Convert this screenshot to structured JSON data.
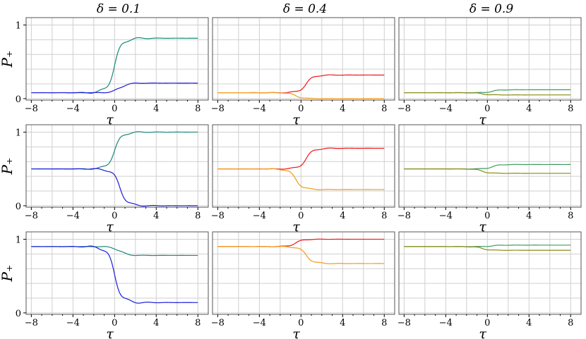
{
  "figure": {
    "titles": [
      "δ = 0.1",
      "δ = 0.4",
      "δ = 0.9"
    ],
    "ylabel": "P₊",
    "xlabel": "τ"
  },
  "colors": {
    "teal": "#19897a",
    "blue": "#1c1cdc",
    "red": "#ee1818",
    "orange": "#f39b16",
    "green": "#3d9a62",
    "olive": "#8a8a12"
  },
  "chart_data": [
    {
      "type": "line",
      "panel": "row1-col1",
      "title": "δ = 0.1",
      "xlabel": "τ",
      "ylabel": "P₊",
      "xlim": [
        -8.5,
        9
      ],
      "ylim": [
        -0.02,
        1.1
      ],
      "xticks": [
        -8,
        -4,
        0,
        4,
        8
      ],
      "yticks": [
        0,
        1
      ],
      "grid": true,
      "series": [
        {
          "color": "teal",
          "start": 0.08,
          "turn": 0.0,
          "end": 0.82
        },
        {
          "color": "blue",
          "start": 0.08,
          "turn": 0.5,
          "end": 0.21
        }
      ]
    },
    {
      "type": "line",
      "panel": "row1-col2",
      "title": "δ = 0.4",
      "xlabel": "τ",
      "xlim": [
        -8.5,
        9
      ],
      "ylim": [
        -0.02,
        1.1
      ],
      "xticks": [
        -8,
        -4,
        0,
        4,
        8
      ],
      "grid": true,
      "series": [
        {
          "color": "red",
          "start": 0.08,
          "turn": 0.5,
          "end": 0.32
        },
        {
          "color": "orange",
          "start": 0.08,
          "turn": -0.5,
          "end": 0.0
        }
      ]
    },
    {
      "type": "line",
      "panel": "row1-col3",
      "title": "δ = 0.9",
      "xlabel": "τ",
      "xlim": [
        -8.5,
        9
      ],
      "ylim": [
        -0.02,
        1.1
      ],
      "xticks": [
        -8,
        -4,
        0,
        4,
        8
      ],
      "grid": true,
      "series": [
        {
          "color": "green",
          "start": 0.08,
          "turn": 0.5,
          "end": 0.12
        },
        {
          "color": "olive",
          "start": 0.08,
          "turn": -0.5,
          "end": 0.05
        }
      ]
    },
    {
      "type": "line",
      "panel": "row2-col1",
      "xlabel": "τ",
      "ylabel": "P₊",
      "xlim": [
        -8.5,
        9
      ],
      "ylim": [
        -0.02,
        1.1
      ],
      "xticks": [
        -8,
        -4,
        0,
        4,
        8
      ],
      "yticks": [
        0,
        1
      ],
      "grid": true,
      "series": [
        {
          "color": "teal",
          "start": 0.5,
          "turn": 0.0,
          "end": 1.0
        },
        {
          "color": "blue",
          "start": 0.5,
          "turn": 0.5,
          "end": 0.0
        }
      ]
    },
    {
      "type": "line",
      "panel": "row2-col2",
      "xlabel": "τ",
      "xlim": [
        -8.5,
        9
      ],
      "ylim": [
        -0.02,
        1.1
      ],
      "xticks": [
        -8,
        -4,
        0,
        4,
        8
      ],
      "grid": true,
      "series": [
        {
          "color": "red",
          "start": 0.5,
          "turn": 0.5,
          "end": 0.78
        },
        {
          "color": "orange",
          "start": 0.5,
          "turn": -0.5,
          "end": 0.22
        }
      ]
    },
    {
      "type": "line",
      "panel": "row2-col3",
      "xlabel": "τ",
      "xlim": [
        -8.5,
        9
      ],
      "ylim": [
        -0.02,
        1.1
      ],
      "xticks": [
        -8,
        -4,
        0,
        4,
        8
      ],
      "grid": true,
      "series": [
        {
          "color": "green",
          "start": 0.5,
          "turn": 0.5,
          "end": 0.56
        },
        {
          "color": "olive",
          "start": 0.5,
          "turn": -0.5,
          "end": 0.44
        }
      ]
    },
    {
      "type": "line",
      "panel": "row3-col1",
      "xlabel": "τ",
      "ylabel": "P₊",
      "xlim": [
        -8.5,
        9
      ],
      "ylim": [
        -0.02,
        1.1
      ],
      "xticks": [
        -8,
        -4,
        0,
        4,
        8
      ],
      "yticks": [
        0,
        1
      ],
      "grid": true,
      "series": [
        {
          "color": "teal",
          "start": 0.9,
          "turn": 0.5,
          "end": 0.78
        },
        {
          "color": "blue",
          "start": 0.9,
          "turn": 0.0,
          "end": 0.14
        }
      ]
    },
    {
      "type": "line",
      "panel": "row3-col2",
      "xlabel": "τ",
      "xlim": [
        -8.5,
        9
      ],
      "ylim": [
        -0.02,
        1.1
      ],
      "xticks": [
        -8,
        -4,
        0,
        4,
        8
      ],
      "grid": true,
      "series": [
        {
          "color": "red",
          "start": 0.9,
          "turn": -0.5,
          "end": 1.0
        },
        {
          "color": "orange",
          "start": 0.9,
          "turn": 0.5,
          "end": 0.67
        }
      ]
    },
    {
      "type": "line",
      "panel": "row3-col3",
      "xlabel": "τ",
      "xlim": [
        -8.5,
        9
      ],
      "ylim": [
        -0.02,
        1.1
      ],
      "xticks": [
        -8,
        -4,
        0,
        4,
        8
      ],
      "grid": true,
      "series": [
        {
          "color": "green",
          "start": 0.9,
          "turn": 0.5,
          "end": 0.92
        },
        {
          "color": "olive",
          "start": 0.9,
          "turn": -0.5,
          "end": 0.85
        }
      ]
    }
  ]
}
